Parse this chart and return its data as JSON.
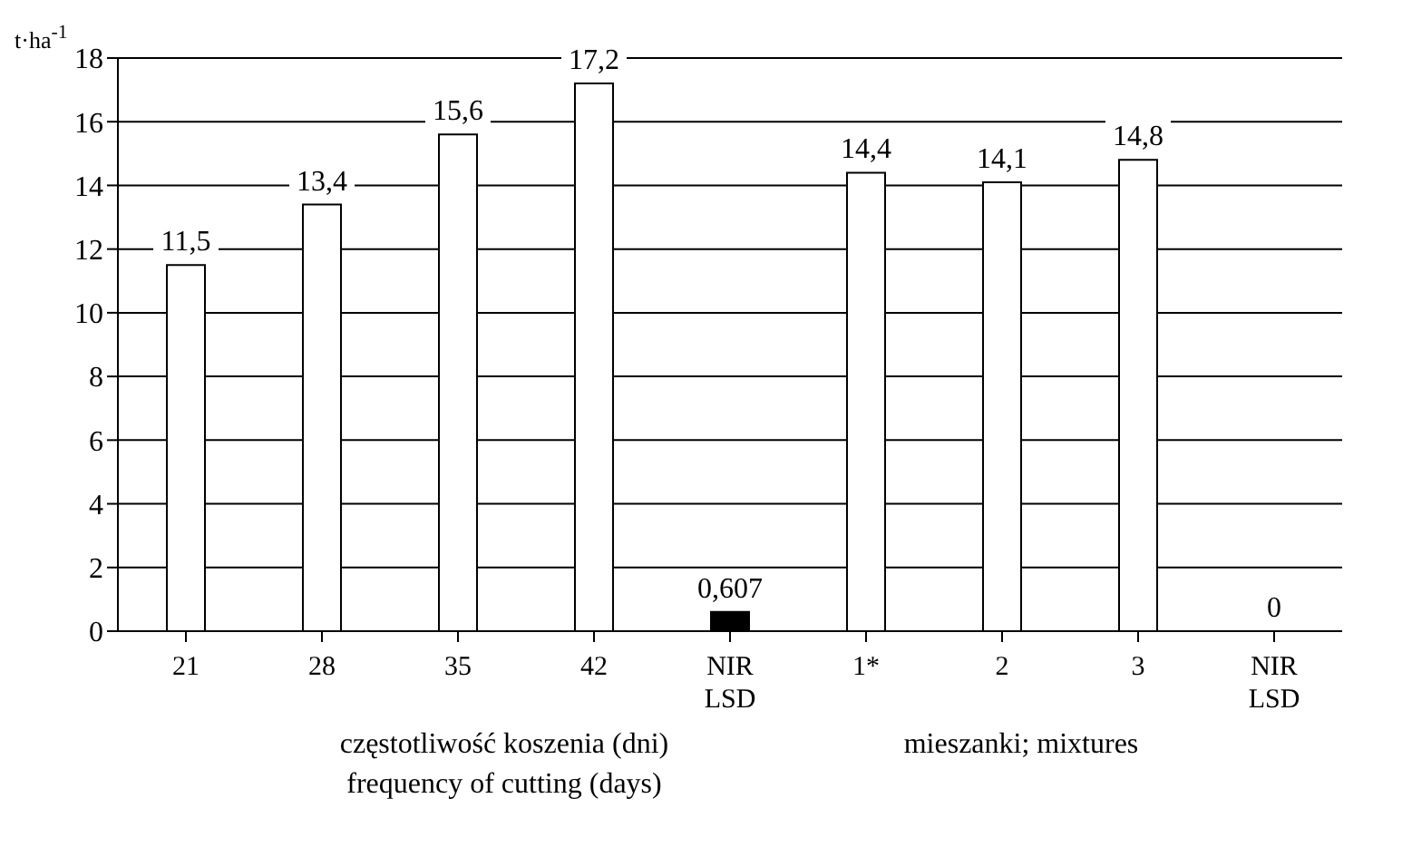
{
  "chart_data": {
    "type": "bar",
    "ylabel": "t·ha$^{-1}$",
    "categories": [
      "21",
      "28",
      "35",
      "42",
      "NIR\nLSD",
      "1*",
      "2",
      "3",
      "NIR\nLSD"
    ],
    "values": [
      11.5,
      13.4,
      15.6,
      17.2,
      0.607,
      14.4,
      14.1,
      14.8,
      0
    ],
    "colors": [
      "#ffffff",
      "#ffffff",
      "#ffffff",
      "#ffffff",
      "#000000",
      "#ffffff",
      "#ffffff",
      "#ffffff",
      "#000000"
    ],
    "value_labels": [
      "11,5",
      "13,4",
      "15,6",
      "17,2",
      "0,607",
      "14,4",
      "14,1",
      "14,8",
      "0"
    ],
    "ylim": [
      0,
      18
    ],
    "yticks": [
      0,
      2,
      4,
      6,
      8,
      10,
      12,
      14,
      16,
      18
    ],
    "grid": "y",
    "annotations": [
      "częstotliwość koszenia (dni)\nfrequency of cutting (days)",
      "mieszanki; mixtures"
    ]
  }
}
